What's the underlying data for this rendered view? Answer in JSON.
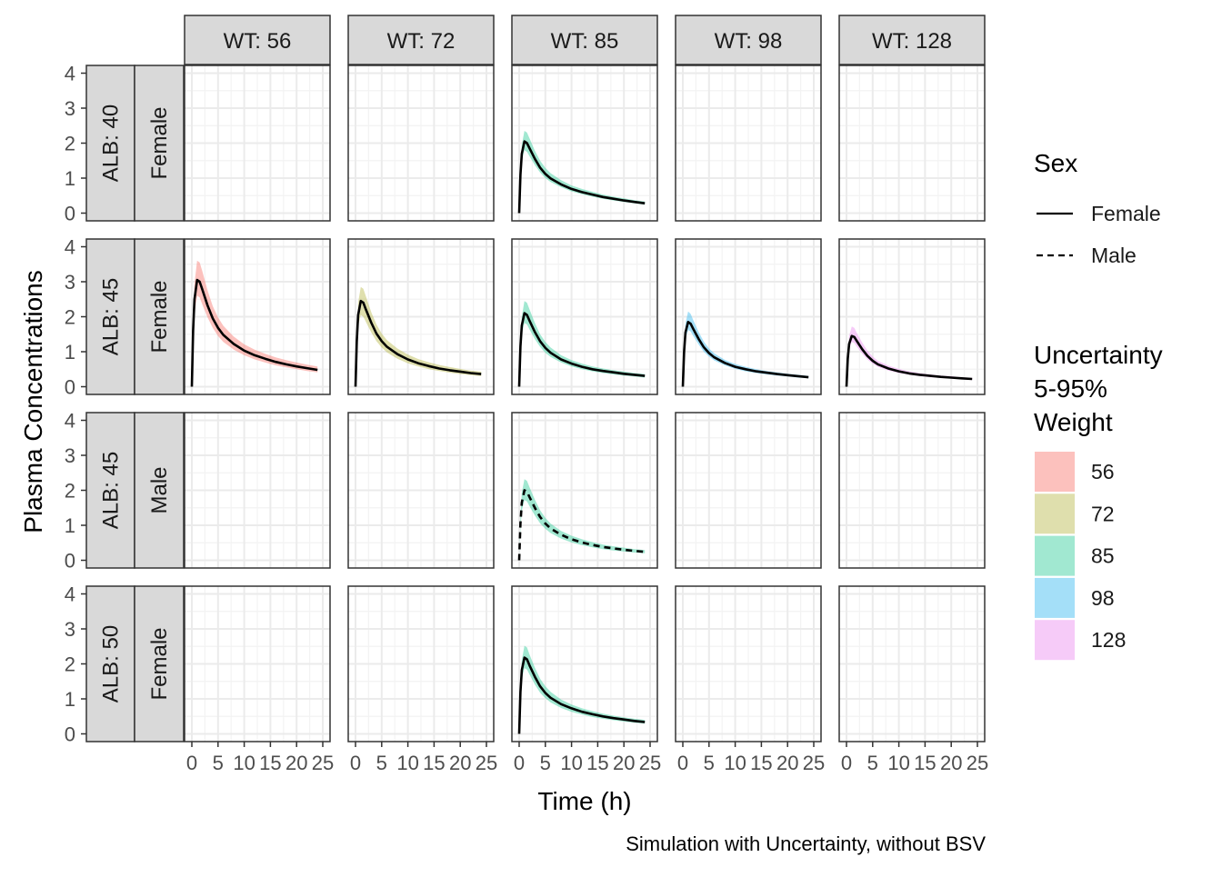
{
  "chart_data": {
    "type": "line",
    "caption": "Simulation with Uncertainty, without BSV",
    "xlabel": "Time (h)",
    "ylabel": "Plasma Concentrations",
    "xlim": [
      0,
      25
    ],
    "ylim": [
      0,
      4
    ],
    "x_ticks": [
      0,
      5,
      10,
      15,
      20,
      25
    ],
    "y_ticks": [
      0,
      1,
      2,
      3,
      4
    ],
    "grid": true,
    "facet_cols": [
      "WT: 56",
      "WT: 72",
      "WT: 85",
      "WT: 98",
      "WT: 128"
    ],
    "facet_rows": [
      {
        "alb": "ALB: 40",
        "sex": "Female"
      },
      {
        "alb": "ALB: 45",
        "sex": "Female"
      },
      {
        "alb": "ALB: 45",
        "sex": "Male"
      },
      {
        "alb": "ALB: 50",
        "sex": "Female"
      }
    ],
    "x": [
      0,
      0.25,
      0.5,
      1,
      1.5,
      2,
      3,
      4,
      5,
      6,
      8,
      10,
      12,
      14,
      16,
      18,
      20,
      22,
      24
    ],
    "series": [
      {
        "row": 0,
        "col": 2,
        "weight": "85",
        "sex": "Female",
        "median": [
          0,
          1.1,
          1.7,
          2.05,
          2.0,
          1.85,
          1.55,
          1.3,
          1.12,
          0.99,
          0.82,
          0.69,
          0.6,
          0.53,
          0.46,
          0.41,
          0.36,
          0.32,
          0.28
        ],
        "lower": [
          0,
          0.95,
          1.5,
          1.8,
          1.75,
          1.62,
          1.37,
          1.16,
          1.0,
          0.89,
          0.74,
          0.62,
          0.54,
          0.47,
          0.41,
          0.36,
          0.32,
          0.28,
          0.24
        ],
        "upper": [
          0,
          1.3,
          1.95,
          2.35,
          2.3,
          2.13,
          1.78,
          1.5,
          1.29,
          1.14,
          0.94,
          0.79,
          0.69,
          0.61,
          0.53,
          0.47,
          0.42,
          0.37,
          0.33
        ]
      },
      {
        "row": 1,
        "col": 0,
        "weight": "56",
        "sex": "Female",
        "median": [
          0,
          1.6,
          2.5,
          3.05,
          3.0,
          2.78,
          2.32,
          1.95,
          1.68,
          1.48,
          1.22,
          1.03,
          0.9,
          0.8,
          0.71,
          0.64,
          0.58,
          0.53,
          0.48
        ],
        "lower": [
          0,
          1.35,
          2.1,
          2.6,
          2.55,
          2.35,
          1.98,
          1.68,
          1.45,
          1.28,
          1.06,
          0.9,
          0.78,
          0.69,
          0.61,
          0.55,
          0.5,
          0.45,
          0.41
        ],
        "upper": [
          0,
          1.9,
          2.95,
          3.6,
          3.55,
          3.3,
          2.75,
          2.3,
          1.98,
          1.74,
          1.43,
          1.21,
          1.06,
          0.94,
          0.84,
          0.76,
          0.69,
          0.63,
          0.58
        ]
      },
      {
        "row": 1,
        "col": 1,
        "weight": "72",
        "sex": "Female",
        "median": [
          0,
          1.3,
          2.05,
          2.45,
          2.4,
          2.2,
          1.83,
          1.52,
          1.3,
          1.14,
          0.93,
          0.78,
          0.67,
          0.59,
          0.52,
          0.47,
          0.43,
          0.39,
          0.36
        ],
        "lower": [
          0,
          1.1,
          1.75,
          2.05,
          2.0,
          1.85,
          1.55,
          1.3,
          1.12,
          0.98,
          0.8,
          0.67,
          0.58,
          0.5,
          0.45,
          0.4,
          0.36,
          0.33,
          0.3
        ],
        "upper": [
          0,
          1.55,
          2.4,
          2.85,
          2.8,
          2.58,
          2.13,
          1.78,
          1.52,
          1.33,
          1.09,
          0.92,
          0.79,
          0.7,
          0.62,
          0.56,
          0.51,
          0.46,
          0.43
        ]
      },
      {
        "row": 1,
        "col": 2,
        "weight": "85",
        "sex": "Female",
        "median": [
          0,
          1.15,
          1.75,
          2.1,
          2.05,
          1.88,
          1.56,
          1.3,
          1.11,
          0.97,
          0.78,
          0.66,
          0.57,
          0.5,
          0.45,
          0.41,
          0.37,
          0.34,
          0.31
        ],
        "lower": [
          0,
          0.98,
          1.52,
          1.82,
          1.78,
          1.63,
          1.36,
          1.14,
          0.97,
          0.85,
          0.69,
          0.58,
          0.5,
          0.44,
          0.39,
          0.35,
          0.32,
          0.29,
          0.26
        ],
        "upper": [
          0,
          1.35,
          2.0,
          2.45,
          2.4,
          2.2,
          1.82,
          1.5,
          1.28,
          1.12,
          0.9,
          0.76,
          0.66,
          0.58,
          0.52,
          0.47,
          0.43,
          0.39,
          0.36
        ]
      },
      {
        "row": 1,
        "col": 3,
        "weight": "98",
        "sex": "Female",
        "median": [
          0,
          1.0,
          1.55,
          1.85,
          1.8,
          1.65,
          1.37,
          1.13,
          0.96,
          0.84,
          0.68,
          0.57,
          0.5,
          0.44,
          0.4,
          0.36,
          0.33,
          0.3,
          0.27
        ],
        "lower": [
          0,
          0.88,
          1.37,
          1.62,
          1.58,
          1.45,
          1.21,
          1.0,
          0.86,
          0.75,
          0.61,
          0.51,
          0.44,
          0.39,
          0.35,
          0.32,
          0.29,
          0.26,
          0.24
        ],
        "upper": [
          0,
          1.15,
          1.8,
          2.15,
          2.08,
          1.9,
          1.57,
          1.29,
          1.09,
          0.95,
          0.77,
          0.65,
          0.57,
          0.5,
          0.45,
          0.41,
          0.37,
          0.34,
          0.31
        ]
      },
      {
        "row": 1,
        "col": 4,
        "weight": "128",
        "sex": "Female",
        "median": [
          0,
          0.8,
          1.22,
          1.45,
          1.42,
          1.3,
          1.07,
          0.88,
          0.74,
          0.64,
          0.52,
          0.44,
          0.38,
          0.34,
          0.31,
          0.28,
          0.26,
          0.24,
          0.22
        ],
        "lower": [
          0,
          0.7,
          1.08,
          1.28,
          1.25,
          1.14,
          0.94,
          0.78,
          0.66,
          0.57,
          0.46,
          0.39,
          0.34,
          0.3,
          0.27,
          0.25,
          0.23,
          0.21,
          0.19
        ],
        "upper": [
          0,
          0.95,
          1.45,
          1.72,
          1.68,
          1.53,
          1.26,
          1.03,
          0.86,
          0.74,
          0.6,
          0.51,
          0.44,
          0.39,
          0.35,
          0.32,
          0.3,
          0.27,
          0.25
        ]
      },
      {
        "row": 2,
        "col": 2,
        "weight": "85",
        "sex": "Male",
        "median": [
          0,
          1.05,
          1.65,
          2.0,
          1.96,
          1.8,
          1.5,
          1.24,
          1.05,
          0.91,
          0.73,
          0.6,
          0.51,
          0.44,
          0.38,
          0.34,
          0.3,
          0.27,
          0.24
        ],
        "lower": [
          0,
          0.9,
          1.42,
          1.72,
          1.68,
          1.54,
          1.28,
          1.06,
          0.9,
          0.78,
          0.62,
          0.51,
          0.43,
          0.37,
          0.32,
          0.28,
          0.25,
          0.22,
          0.2
        ],
        "upper": [
          0,
          1.25,
          1.93,
          2.32,
          2.27,
          2.08,
          1.73,
          1.43,
          1.21,
          1.05,
          0.84,
          0.7,
          0.6,
          0.52,
          0.45,
          0.4,
          0.36,
          0.32,
          0.29
        ]
      },
      {
        "row": 3,
        "col": 2,
        "weight": "85",
        "sex": "Female",
        "median": [
          0,
          1.2,
          1.82,
          2.18,
          2.13,
          1.95,
          1.63,
          1.36,
          1.17,
          1.03,
          0.85,
          0.73,
          0.63,
          0.56,
          0.5,
          0.45,
          0.41,
          0.37,
          0.34
        ],
        "lower": [
          0,
          1.03,
          1.58,
          1.88,
          1.84,
          1.69,
          1.41,
          1.18,
          1.02,
          0.9,
          0.74,
          0.63,
          0.55,
          0.48,
          0.43,
          0.39,
          0.35,
          0.32,
          0.29
        ],
        "upper": [
          0,
          1.4,
          2.1,
          2.52,
          2.47,
          2.26,
          1.89,
          1.58,
          1.36,
          1.2,
          0.98,
          0.84,
          0.73,
          0.65,
          0.58,
          0.52,
          0.47,
          0.43,
          0.4
        ]
      }
    ],
    "legend": {
      "position": "right",
      "linetype": {
        "title": "Sex",
        "items": [
          {
            "label": "Female",
            "dash": "solid"
          },
          {
            "label": "Male",
            "dash": "dashed"
          }
        ]
      },
      "fill": {
        "title": [
          "Uncertainty",
          "5-95%",
          "Weight"
        ],
        "items": [
          {
            "label": "56",
            "color": "#F8766D"
          },
          {
            "label": "72",
            "color": "#B7B84A"
          },
          {
            "label": "85",
            "color": "#2FCC9A"
          },
          {
            "label": "98",
            "color": "#35B8F0"
          },
          {
            "label": "128",
            "color": "#EB8BF0"
          }
        ]
      }
    },
    "colors": {
      "strip_bg": "#D9D9D9",
      "panel_border": "#333333",
      "grid_major": "#EBEBEB",
      "grid_minor": "#F3F3F3",
      "band_alpha": "0.45"
    }
  }
}
